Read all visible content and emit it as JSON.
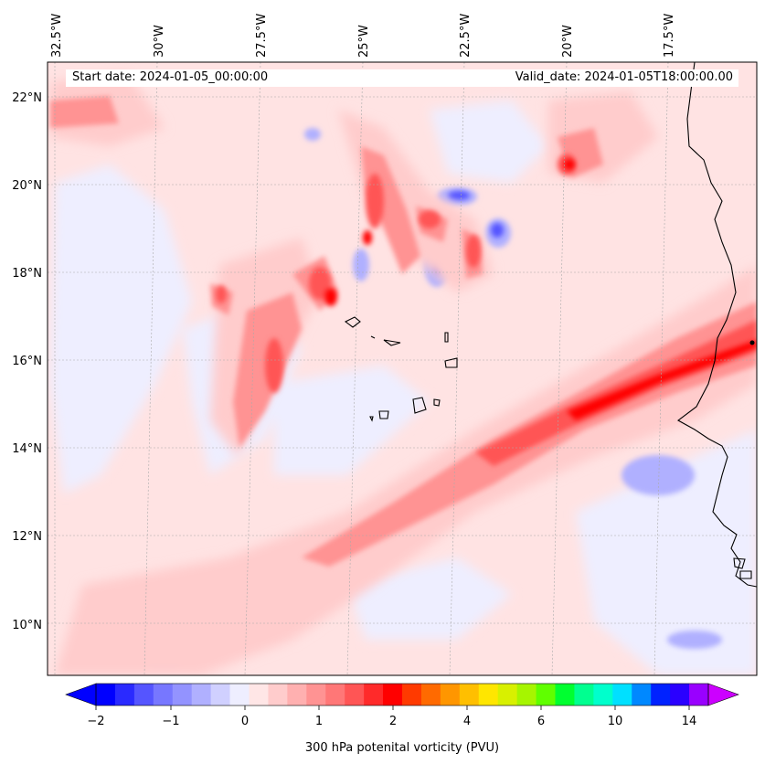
{
  "header": {
    "start_date": "Start date: 2024-01-05_00:00:00",
    "valid_date": "Valid_date: 2024-01-05T18:00:00.00"
  },
  "longitude_labels": [
    "32.5°W",
    "30°W",
    "27.5°W",
    "25°W",
    "22.5°W",
    "20°W",
    "17.5°W"
  ],
  "latitude_labels": [
    "22°N",
    "20°N",
    "18°N",
    "16°N",
    "14°N",
    "12°N",
    "10°N"
  ],
  "colorbar": {
    "title": "300 hPa potenital vorticity (PVU)",
    "tick_labels": [
      "−2",
      "−1",
      "0",
      "1",
      "2",
      "4",
      "6",
      "10",
      "14"
    ],
    "colors": [
      "#0000ff",
      "#2a2aff",
      "#5555ff",
      "#7777ff",
      "#9393ff",
      "#b0b0ff",
      "#d0d0ff",
      "#eeeeff",
      "#ffe6e6",
      "#ffcccc",
      "#ffb0b0",
      "#ff9393",
      "#ff7777",
      "#ff5555",
      "#ff2a2a",
      "#ff0000",
      "#ff3a00",
      "#ff6a00",
      "#ff9600",
      "#ffbf00",
      "#ffe600",
      "#d8f000",
      "#a6f500",
      "#60ff00",
      "#00ff30",
      "#00ff90",
      "#00ffcc",
      "#00e0ff",
      "#0088ff",
      "#0022ff",
      "#2a00ff",
      "#9900ff"
    ],
    "under_color": "#0000ff",
    "over_color": "#cc00ff"
  },
  "map_colors": {
    "background": "#ffe3e3",
    "negative_light": "#eeeeff",
    "negative_mid": "#b0b0ff",
    "negative_strong": "#5555ff",
    "positive_light": "#ffcccc",
    "positive_mid": "#ff9393",
    "positive_strong": "#ff5555",
    "positive_max": "#ff0000",
    "coastline": "#000000",
    "gridline": "#aaaaaa"
  }
}
